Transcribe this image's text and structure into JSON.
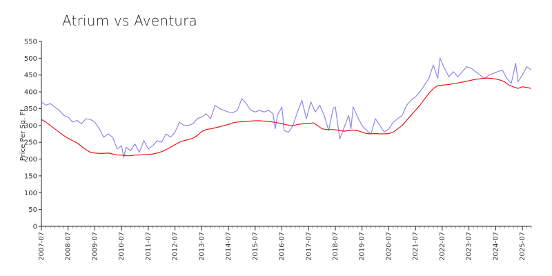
{
  "chart_data": {
    "type": "line",
    "title": "Atrium vs Aventura",
    "xlabel": "",
    "ylabel": "Price Per Sq. Ft.",
    "ylim": [
      0,
      550
    ],
    "yticks": [
      0,
      50,
      100,
      150,
      200,
      250,
      300,
      350,
      400,
      450,
      500,
      550
    ],
    "xlim": [
      "2007-07",
      "2025-11"
    ],
    "xticks": [
      "2007-07",
      "2008-07",
      "2009-07",
      "2010-07",
      "2011-07",
      "2012-07",
      "2013-07",
      "2014-07",
      "2015-07",
      "2016-07",
      "2017-07",
      "2018-07",
      "2019-07",
      "2020-07",
      "2021-07",
      "2022-07",
      "2023-07",
      "2024-07",
      "2025-07"
    ],
    "grid": false,
    "legend": "none",
    "series": [
      {
        "color": "#8888ee",
        "points": [
          [
            "2007-07",
            370
          ],
          [
            "2007-09",
            360
          ],
          [
            "2007-11",
            365
          ],
          [
            "2008-01",
            355
          ],
          [
            "2008-03",
            345
          ],
          [
            "2008-05",
            330
          ],
          [
            "2008-07",
            325
          ],
          [
            "2008-09",
            310
          ],
          [
            "2008-11",
            315
          ],
          [
            "2009-01",
            305
          ],
          [
            "2009-03",
            320
          ],
          [
            "2009-05",
            318
          ],
          [
            "2009-07",
            310
          ],
          [
            "2009-09",
            290
          ],
          [
            "2009-11",
            265
          ],
          [
            "2010-01",
            275
          ],
          [
            "2010-03",
            265
          ],
          [
            "2010-05",
            230
          ],
          [
            "2010-07",
            240
          ],
          [
            "2010-08",
            205
          ],
          [
            "2010-09",
            235
          ],
          [
            "2010-11",
            225
          ],
          [
            "2011-01",
            245
          ],
          [
            "2011-03",
            220
          ],
          [
            "2011-05",
            255
          ],
          [
            "2011-07",
            230
          ],
          [
            "2011-09",
            240
          ],
          [
            "2011-11",
            255
          ],
          [
            "2012-01",
            250
          ],
          [
            "2012-03",
            275
          ],
          [
            "2012-05",
            265
          ],
          [
            "2012-07",
            280
          ],
          [
            "2012-09",
            310
          ],
          [
            "2012-11",
            300
          ],
          [
            "2013-01",
            300
          ],
          [
            "2013-03",
            305
          ],
          [
            "2013-05",
            320
          ],
          [
            "2013-07",
            325
          ],
          [
            "2013-09",
            335
          ],
          [
            "2013-11",
            320
          ],
          [
            "2014-01",
            360
          ],
          [
            "2014-03",
            350
          ],
          [
            "2014-05",
            345
          ],
          [
            "2014-07",
            340
          ],
          [
            "2014-09",
            338
          ],
          [
            "2014-11",
            345
          ],
          [
            "2015-01",
            380
          ],
          [
            "2015-03",
            365
          ],
          [
            "2015-05",
            345
          ],
          [
            "2015-07",
            340
          ],
          [
            "2015-09",
            345
          ],
          [
            "2015-11",
            340
          ],
          [
            "2016-01",
            345
          ],
          [
            "2016-03",
            335
          ],
          [
            "2016-04",
            290
          ],
          [
            "2016-05",
            330
          ],
          [
            "2016-07",
            355
          ],
          [
            "2016-08",
            285
          ],
          [
            "2016-10",
            280
          ],
          [
            "2016-12",
            300
          ],
          [
            "2017-02",
            340
          ],
          [
            "2017-04",
            375
          ],
          [
            "2017-06",
            320
          ],
          [
            "2017-08",
            370
          ],
          [
            "2017-10",
            340
          ],
          [
            "2017-12",
            360
          ],
          [
            "2018-02",
            330
          ],
          [
            "2018-04",
            285
          ],
          [
            "2018-06",
            350
          ],
          [
            "2018-07",
            355
          ],
          [
            "2018-09",
            260
          ],
          [
            "2018-11",
            295
          ],
          [
            "2019-01",
            330
          ],
          [
            "2019-02",
            290
          ],
          [
            "2019-03",
            355
          ],
          [
            "2019-05",
            325
          ],
          [
            "2019-07",
            300
          ],
          [
            "2019-09",
            285
          ],
          [
            "2019-11",
            275
          ],
          [
            "2020-01",
            320
          ],
          [
            "2020-03",
            300
          ],
          [
            "2020-05",
            280
          ],
          [
            "2020-07",
            290
          ],
          [
            "2020-09",
            310
          ],
          [
            "2020-11",
            320
          ],
          [
            "2021-01",
            330
          ],
          [
            "2021-03",
            360
          ],
          [
            "2021-05",
            375
          ],
          [
            "2021-07",
            385
          ],
          [
            "2021-09",
            400
          ],
          [
            "2021-11",
            420
          ],
          [
            "2022-01",
            440
          ],
          [
            "2022-03",
            480
          ],
          [
            "2022-05",
            440
          ],
          [
            "2022-06",
            500
          ],
          [
            "2022-08",
            470
          ],
          [
            "2022-10",
            445
          ],
          [
            "2022-12",
            460
          ],
          [
            "2023-02",
            445
          ],
          [
            "2023-04",
            460
          ],
          [
            "2023-06",
            475
          ],
          [
            "2023-08",
            470
          ],
          [
            "2023-10",
            460
          ],
          [
            "2023-12",
            450
          ],
          [
            "2024-02",
            440
          ],
          [
            "2024-04",
            450
          ],
          [
            "2024-06",
            455
          ],
          [
            "2024-08",
            460
          ],
          [
            "2024-10",
            465
          ],
          [
            "2024-12",
            440
          ],
          [
            "2025-02",
            425
          ],
          [
            "2025-04",
            485
          ],
          [
            "2025-05",
            430
          ],
          [
            "2025-07",
            450
          ],
          [
            "2025-09",
            475
          ],
          [
            "2025-11",
            465
          ]
        ]
      },
      {
        "color": "#ee1111",
        "points": [
          [
            "2007-07",
            318
          ],
          [
            "2007-09",
            310
          ],
          [
            "2007-11",
            300
          ],
          [
            "2008-01",
            290
          ],
          [
            "2008-03",
            280
          ],
          [
            "2008-05",
            270
          ],
          [
            "2008-07",
            262
          ],
          [
            "2008-09",
            255
          ],
          [
            "2008-11",
            248
          ],
          [
            "2009-01",
            238
          ],
          [
            "2009-03",
            228
          ],
          [
            "2009-05",
            220
          ],
          [
            "2009-07",
            218
          ],
          [
            "2009-09",
            217
          ],
          [
            "2009-11",
            217
          ],
          [
            "2010-01",
            218
          ],
          [
            "2010-03",
            215
          ],
          [
            "2010-05",
            212
          ],
          [
            "2010-07",
            212
          ],
          [
            "2010-09",
            210
          ],
          [
            "2010-11",
            210
          ],
          [
            "2011-01",
            212
          ],
          [
            "2011-03",
            212
          ],
          [
            "2011-05",
            213
          ],
          [
            "2011-07",
            214
          ],
          [
            "2011-09",
            215
          ],
          [
            "2011-11",
            218
          ],
          [
            "2012-01",
            222
          ],
          [
            "2012-03",
            228
          ],
          [
            "2012-05",
            235
          ],
          [
            "2012-07",
            243
          ],
          [
            "2012-09",
            250
          ],
          [
            "2012-11",
            255
          ],
          [
            "2013-01",
            258
          ],
          [
            "2013-03",
            262
          ],
          [
            "2013-05",
            270
          ],
          [
            "2013-07",
            282
          ],
          [
            "2013-09",
            288
          ],
          [
            "2013-11",
            290
          ],
          [
            "2014-01",
            293
          ],
          [
            "2014-03",
            296
          ],
          [
            "2014-05",
            300
          ],
          [
            "2014-07",
            303
          ],
          [
            "2014-09",
            308
          ],
          [
            "2014-11",
            310
          ],
          [
            "2015-01",
            311
          ],
          [
            "2015-03",
            312
          ],
          [
            "2015-05",
            313
          ],
          [
            "2015-07",
            314
          ],
          [
            "2015-09",
            314
          ],
          [
            "2015-11",
            313
          ],
          [
            "2016-01",
            312
          ],
          [
            "2016-03",
            310
          ],
          [
            "2016-05",
            308
          ],
          [
            "2016-07",
            305
          ],
          [
            "2016-09",
            302
          ],
          [
            "2016-11",
            300
          ],
          [
            "2017-01",
            301
          ],
          [
            "2017-03",
            304
          ],
          [
            "2017-05",
            305
          ],
          [
            "2017-07",
            305
          ],
          [
            "2017-09",
            308
          ],
          [
            "2017-11",
            300
          ],
          [
            "2018-01",
            290
          ],
          [
            "2018-03",
            288
          ],
          [
            "2018-05",
            288
          ],
          [
            "2018-07",
            287
          ],
          [
            "2018-09",
            285
          ],
          [
            "2018-11",
            283
          ],
          [
            "2019-01",
            285
          ],
          [
            "2019-03",
            286
          ],
          [
            "2019-05",
            285
          ],
          [
            "2019-07",
            280
          ],
          [
            "2019-09",
            276
          ],
          [
            "2019-11",
            275
          ],
          [
            "2020-01",
            276
          ],
          [
            "2020-03",
            275
          ],
          [
            "2020-05",
            275
          ],
          [
            "2020-07",
            276
          ],
          [
            "2020-09",
            280
          ],
          [
            "2020-11",
            290
          ],
          [
            "2021-01",
            300
          ],
          [
            "2021-03",
            315
          ],
          [
            "2021-05",
            330
          ],
          [
            "2021-07",
            345
          ],
          [
            "2021-09",
            360
          ],
          [
            "2021-11",
            378
          ],
          [
            "2022-01",
            395
          ],
          [
            "2022-03",
            410
          ],
          [
            "2022-05",
            418
          ],
          [
            "2022-07",
            420
          ],
          [
            "2022-09",
            421
          ],
          [
            "2022-11",
            423
          ],
          [
            "2023-01",
            425
          ],
          [
            "2023-03",
            428
          ],
          [
            "2023-05",
            430
          ],
          [
            "2023-07",
            433
          ],
          [
            "2023-09",
            436
          ],
          [
            "2023-11",
            438
          ],
          [
            "2024-01",
            440
          ],
          [
            "2024-03",
            441
          ],
          [
            "2024-05",
            440
          ],
          [
            "2024-07",
            438
          ],
          [
            "2024-09",
            435
          ],
          [
            "2024-11",
            430
          ],
          [
            "2025-01",
            420
          ],
          [
            "2025-03",
            415
          ],
          [
            "2025-05",
            410
          ],
          [
            "2025-07",
            415
          ],
          [
            "2025-09",
            413
          ],
          [
            "2025-11",
            410
          ]
        ]
      }
    ]
  }
}
